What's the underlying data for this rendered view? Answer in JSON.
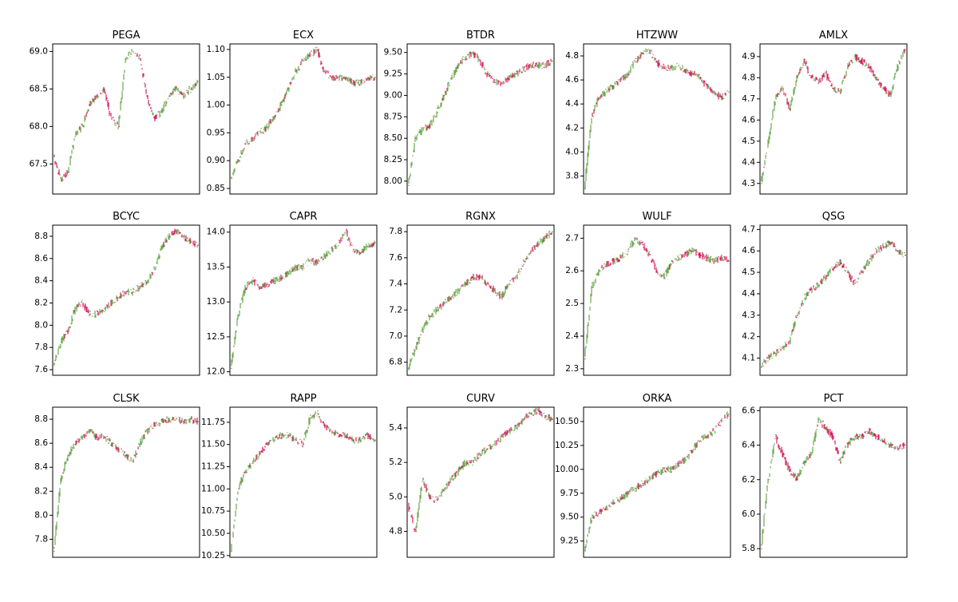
{
  "colors": {
    "up": "#6aa84f",
    "down": "#d5205e",
    "frame": "#000000",
    "background": "#ffffff"
  },
  "chart_data": [
    {
      "type": "line",
      "title": "PEGA",
      "ylim": [
        67.1,
        69.1
      ],
      "yticks": [
        "67.5",
        "68.0",
        "68.5",
        "69.0"
      ],
      "ytick_values": [
        67.5,
        68.0,
        68.5,
        69.0
      ],
      "x": [
        0,
        5,
        10,
        15,
        20,
        25,
        30,
        35,
        40,
        45,
        50,
        55,
        60,
        65,
        70,
        75,
        80,
        85,
        90,
        95,
        100
      ],
      "values": [
        67.6,
        67.3,
        67.4,
        67.9,
        68.0,
        68.3,
        68.4,
        68.5,
        68.1,
        68.0,
        68.9,
        69.0,
        68.9,
        68.4,
        68.1,
        68.2,
        68.4,
        68.5,
        68.4,
        68.5,
        68.6
      ]
    },
    {
      "type": "line",
      "title": "ECX",
      "ylim": [
        0.84,
        1.11
      ],
      "yticks": [
        "0.85",
        "0.90",
        "0.95",
        "1.00",
        "1.05",
        "1.10"
      ],
      "ytick_values": [
        0.85,
        0.9,
        0.95,
        1.0,
        1.05,
        1.1
      ],
      "x": [
        0,
        5,
        10,
        15,
        20,
        25,
        30,
        35,
        40,
        45,
        50,
        55,
        60,
        65,
        70,
        75,
        80,
        85,
        90,
        95,
        100
      ],
      "values": [
        0.87,
        0.9,
        0.93,
        0.94,
        0.95,
        0.96,
        0.98,
        1.0,
        1.03,
        1.06,
        1.08,
        1.09,
        1.1,
        1.06,
        1.05,
        1.05,
        1.05,
        1.04,
        1.04,
        1.05,
        1.05
      ]
    },
    {
      "type": "line",
      "title": "BTDR",
      "ylim": [
        7.85,
        9.6
      ],
      "yticks": [
        "8.00",
        "8.25",
        "8.50",
        "8.75",
        "9.00",
        "9.25",
        "9.50"
      ],
      "ytick_values": [
        8.0,
        8.25,
        8.5,
        8.75,
        9.0,
        9.25,
        9.5
      ],
      "x": [
        0,
        5,
        10,
        15,
        20,
        25,
        30,
        35,
        40,
        45,
        50,
        55,
        60,
        65,
        70,
        75,
        80,
        85,
        90,
        95,
        100
      ],
      "values": [
        7.95,
        8.5,
        8.6,
        8.65,
        8.8,
        9.0,
        9.2,
        9.35,
        9.45,
        9.5,
        9.4,
        9.25,
        9.15,
        9.15,
        9.2,
        9.25,
        9.3,
        9.35,
        9.35,
        9.35,
        9.4
      ]
    },
    {
      "type": "line",
      "title": "HTZWW",
      "ylim": [
        3.65,
        4.9
      ],
      "yticks": [
        "3.8",
        "4.0",
        "4.2",
        "4.4",
        "4.6",
        "4.8"
      ],
      "ytick_values": [
        3.8,
        4.0,
        4.2,
        4.4,
        4.6,
        4.8
      ],
      "x": [
        0,
        5,
        10,
        15,
        20,
        25,
        30,
        35,
        40,
        45,
        50,
        55,
        60,
        65,
        70,
        75,
        80,
        85,
        90,
        95,
        100
      ],
      "values": [
        3.7,
        4.3,
        4.45,
        4.5,
        4.55,
        4.6,
        4.65,
        4.75,
        4.82,
        4.85,
        4.75,
        4.7,
        4.7,
        4.72,
        4.68,
        4.65,
        4.62,
        4.55,
        4.5,
        4.45,
        4.5
      ]
    },
    {
      "type": "line",
      "title": "AMLX",
      "ylim": [
        4.25,
        4.96
      ],
      "yticks": [
        "4.3",
        "4.4",
        "4.5",
        "4.6",
        "4.7",
        "4.8",
        "4.9"
      ],
      "ytick_values": [
        4.3,
        4.4,
        4.5,
        4.6,
        4.7,
        4.8,
        4.9
      ],
      "x": [
        0,
        5,
        10,
        15,
        20,
        25,
        30,
        35,
        40,
        45,
        50,
        55,
        60,
        65,
        70,
        75,
        80,
        85,
        90,
        95,
        100
      ],
      "values": [
        4.3,
        4.5,
        4.7,
        4.75,
        4.65,
        4.8,
        4.88,
        4.8,
        4.78,
        4.82,
        4.75,
        4.73,
        4.85,
        4.9,
        4.88,
        4.85,
        4.8,
        4.75,
        4.72,
        4.85,
        4.93
      ]
    },
    {
      "type": "line",
      "title": "BCYC",
      "ylim": [
        7.55,
        8.9
      ],
      "yticks": [
        "7.6",
        "7.8",
        "8.0",
        "8.2",
        "8.4",
        "8.6",
        "8.8"
      ],
      "ytick_values": [
        7.6,
        7.8,
        8.0,
        8.2,
        8.4,
        8.6,
        8.8
      ],
      "x": [
        0,
        5,
        10,
        15,
        20,
        25,
        30,
        35,
        40,
        45,
        50,
        55,
        60,
        65,
        70,
        75,
        80,
        85,
        90,
        95,
        100
      ],
      "values": [
        7.65,
        7.85,
        7.95,
        8.15,
        8.2,
        8.1,
        8.1,
        8.15,
        8.2,
        8.25,
        8.3,
        8.3,
        8.35,
        8.4,
        8.5,
        8.7,
        8.8,
        8.85,
        8.8,
        8.75,
        8.72
      ]
    },
    {
      "type": "line",
      "title": "CAPR",
      "ylim": [
        11.95,
        14.1
      ],
      "yticks": [
        "12.0",
        "12.5",
        "13.0",
        "13.5",
        "14.0"
      ],
      "ytick_values": [
        12.0,
        12.5,
        13.0,
        13.5,
        14.0
      ],
      "x": [
        0,
        5,
        10,
        15,
        20,
        25,
        30,
        35,
        40,
        45,
        50,
        55,
        60,
        65,
        70,
        75,
        80,
        85,
        90,
        95,
        100
      ],
      "values": [
        12.05,
        12.8,
        13.2,
        13.3,
        13.2,
        13.25,
        13.3,
        13.35,
        13.4,
        13.5,
        13.5,
        13.6,
        13.55,
        13.65,
        13.75,
        13.85,
        14.0,
        13.75,
        13.7,
        13.8,
        13.85
      ]
    },
    {
      "type": "line",
      "title": "RGNX",
      "ylim": [
        6.7,
        7.85
      ],
      "yticks": [
        "6.8",
        "7.0",
        "7.2",
        "7.4",
        "7.6",
        "7.8"
      ],
      "ytick_values": [
        6.8,
        7.0,
        7.2,
        7.4,
        7.6,
        7.8
      ],
      "x": [
        0,
        5,
        10,
        15,
        20,
        25,
        30,
        35,
        40,
        45,
        50,
        55,
        60,
        65,
        70,
        75,
        80,
        85,
        90,
        95,
        100
      ],
      "values": [
        6.75,
        6.9,
        7.05,
        7.15,
        7.2,
        7.25,
        7.3,
        7.35,
        7.4,
        7.45,
        7.45,
        7.4,
        7.35,
        7.3,
        7.4,
        7.45,
        7.55,
        7.65,
        7.7,
        7.75,
        7.8
      ]
    },
    {
      "type": "line",
      "title": "WULF",
      "ylim": [
        2.28,
        2.74
      ],
      "yticks": [
        "2.3",
        "2.4",
        "2.5",
        "2.6",
        "2.7"
      ],
      "ytick_values": [
        2.3,
        2.4,
        2.5,
        2.6,
        2.7
      ],
      "x": [
        0,
        5,
        10,
        15,
        20,
        25,
        30,
        35,
        40,
        45,
        50,
        55,
        60,
        65,
        70,
        75,
        80,
        85,
        90,
        95,
        100
      ],
      "values": [
        2.33,
        2.55,
        2.6,
        2.62,
        2.63,
        2.64,
        2.66,
        2.7,
        2.68,
        2.65,
        2.6,
        2.58,
        2.62,
        2.64,
        2.65,
        2.66,
        2.65,
        2.64,
        2.63,
        2.64,
        2.63
      ]
    },
    {
      "type": "line",
      "title": "QSG",
      "ylim": [
        4.02,
        4.72
      ],
      "yticks": [
        "4.1",
        "4.2",
        "4.3",
        "4.4",
        "4.5",
        "4.6",
        "4.7"
      ],
      "ytick_values": [
        4.1,
        4.2,
        4.3,
        4.4,
        4.5,
        4.6,
        4.7
      ],
      "x": [
        0,
        5,
        10,
        15,
        20,
        25,
        30,
        35,
        40,
        45,
        50,
        55,
        60,
        65,
        70,
        75,
        80,
        85,
        90,
        95,
        100
      ],
      "values": [
        4.06,
        4.1,
        4.12,
        4.15,
        4.18,
        4.3,
        4.38,
        4.42,
        4.44,
        4.48,
        4.52,
        4.55,
        4.5,
        4.45,
        4.5,
        4.55,
        4.6,
        4.62,
        4.64,
        4.6,
        4.58
      ]
    },
    {
      "type": "line",
      "title": "CLSK",
      "ylim": [
        7.65,
        8.9
      ],
      "yticks": [
        "7.8",
        "8.0",
        "8.2",
        "8.4",
        "8.6",
        "8.8"
      ],
      "ytick_values": [
        7.8,
        8.0,
        8.2,
        8.4,
        8.6,
        8.8
      ],
      "x": [
        0,
        5,
        10,
        15,
        20,
        25,
        30,
        35,
        40,
        45,
        50,
        55,
        60,
        65,
        70,
        75,
        80,
        85,
        90,
        95,
        100
      ],
      "values": [
        7.7,
        8.3,
        8.5,
        8.6,
        8.65,
        8.7,
        8.65,
        8.65,
        8.6,
        8.55,
        8.5,
        8.45,
        8.6,
        8.7,
        8.75,
        8.78,
        8.8,
        8.8,
        8.78,
        8.8,
        8.78
      ]
    },
    {
      "type": "line",
      "title": "RAPP",
      "ylim": [
        10.23,
        11.92
      ],
      "yticks": [
        "10.25",
        "10.50",
        "10.75",
        "11.00",
        "11.25",
        "11.50",
        "11.75"
      ],
      "ytick_values": [
        10.25,
        10.5,
        10.75,
        11.0,
        11.25,
        11.5,
        11.75
      ],
      "x": [
        0,
        5,
        10,
        15,
        20,
        25,
        30,
        35,
        40,
        45,
        50,
        55,
        60,
        65,
        70,
        75,
        80,
        85,
        90,
        95,
        100
      ],
      "values": [
        10.3,
        11.0,
        11.2,
        11.3,
        11.4,
        11.5,
        11.55,
        11.6,
        11.6,
        11.55,
        11.5,
        11.8,
        11.85,
        11.7,
        11.65,
        11.6,
        11.6,
        11.55,
        11.55,
        11.6,
        11.55
      ]
    },
    {
      "type": "line",
      "title": "CURV",
      "ylim": [
        4.65,
        5.52
      ],
      "yticks": [
        "4.8",
        "5.0",
        "5.2",
        "5.4"
      ],
      "ytick_values": [
        4.8,
        5.0,
        5.2,
        5.4
      ],
      "x": [
        0,
        5,
        10,
        15,
        20,
        25,
        30,
        35,
        40,
        45,
        50,
        55,
        60,
        65,
        70,
        75,
        80,
        85,
        90,
        95,
        100
      ],
      "values": [
        4.95,
        4.8,
        5.1,
        5.0,
        4.98,
        5.05,
        5.1,
        5.15,
        5.2,
        5.2,
        5.25,
        5.28,
        5.3,
        5.35,
        5.38,
        5.4,
        5.45,
        5.48,
        5.5,
        5.47,
        5.45
      ]
    },
    {
      "type": "line",
      "title": "ORKA",
      "ylim": [
        9.08,
        10.65
      ],
      "yticks": [
        "9.25",
        "9.50",
        "9.75",
        "10.00",
        "10.25",
        "10.50"
      ],
      "ytick_values": [
        9.25,
        9.5,
        9.75,
        10.0,
        10.25,
        10.5
      ],
      "x": [
        0,
        5,
        10,
        15,
        20,
        25,
        30,
        35,
        40,
        45,
        50,
        55,
        60,
        65,
        70,
        75,
        80,
        85,
        90,
        95,
        100
      ],
      "values": [
        9.15,
        9.5,
        9.55,
        9.6,
        9.65,
        9.7,
        9.75,
        9.8,
        9.85,
        9.9,
        9.95,
        10.0,
        10.0,
        10.05,
        10.1,
        10.2,
        10.3,
        10.35,
        10.4,
        10.5,
        10.58
      ]
    },
    {
      "type": "line",
      "title": "PCT",
      "ylim": [
        5.75,
        6.62
      ],
      "yticks": [
        "5.8",
        "6.0",
        "6.2",
        "6.4",
        "6.6"
      ],
      "ytick_values": [
        5.8,
        6.0,
        6.2,
        6.4,
        6.6
      ],
      "x": [
        0,
        5,
        10,
        15,
        20,
        25,
        30,
        35,
        40,
        45,
        50,
        55,
        60,
        65,
        70,
        75,
        80,
        85,
        90,
        95,
        100
      ],
      "values": [
        5.8,
        6.2,
        6.45,
        6.35,
        6.25,
        6.2,
        6.3,
        6.35,
        6.55,
        6.5,
        6.45,
        6.3,
        6.4,
        6.45,
        6.45,
        6.48,
        6.45,
        6.42,
        6.4,
        6.38,
        6.4
      ]
    }
  ]
}
